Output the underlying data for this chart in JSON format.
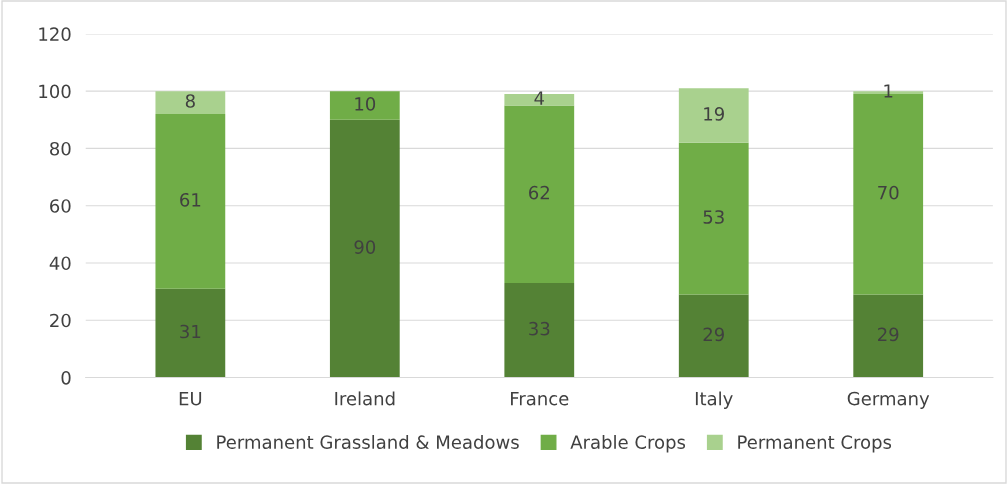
{
  "chart_data": {
    "type": "bar",
    "stacked": true,
    "categories": [
      "EU",
      "Ireland",
      "France",
      "Italy",
      "Germany"
    ],
    "series": [
      {
        "name": "Permanent Grassland & Meadows",
        "color": "#548235",
        "values": [
          31,
          90,
          33,
          29,
          29
        ],
        "value_labels": [
          "31",
          "90",
          "33",
          "29",
          "29"
        ]
      },
      {
        "name": "Arable Crops",
        "color": "#70ad47",
        "values": [
          61,
          10,
          62,
          53,
          70
        ],
        "value_labels": [
          "61",
          "10",
          "62",
          "53",
          "70"
        ]
      },
      {
        "name": "Permanent Crops",
        "color": "#a9d18e",
        "values": [
          8,
          0,
          4,
          19,
          1
        ],
        "value_labels": [
          "8",
          null,
          "4",
          "19",
          "1"
        ]
      }
    ],
    "ylim": [
      0,
      120
    ],
    "yticks": [
      0,
      20,
      40,
      60,
      80,
      100,
      120
    ],
    "grid": "y",
    "legend": "bottom"
  }
}
